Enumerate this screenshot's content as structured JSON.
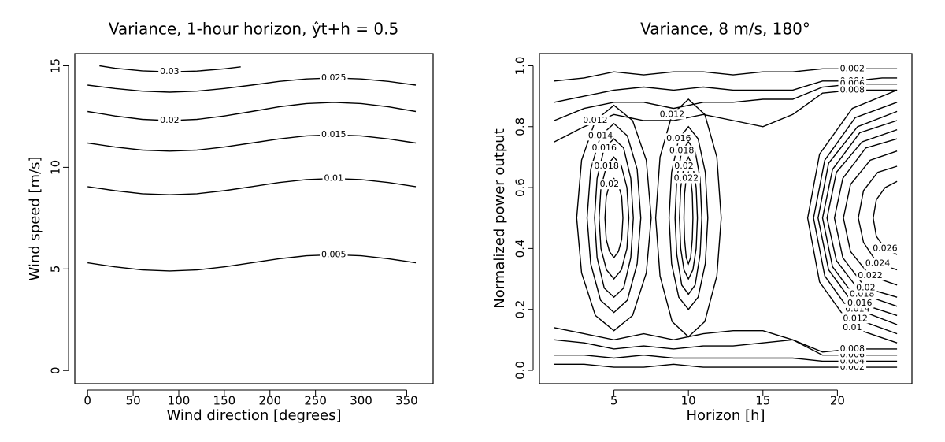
{
  "chart_data": [
    {
      "type": "contour",
      "title": "Variance, 1-hour horizon, ŷt+h = 0.5",
      "x_label": "Wind direction [degrees]",
      "y_label": "Wind speed [m/s]",
      "xlim": [
        -14,
        379
      ],
      "ylim": [
        -0.65,
        15.6
      ],
      "xticks": [
        0,
        50,
        100,
        150,
        200,
        250,
        300,
        350
      ],
      "yticks": [
        0,
        5,
        10,
        15
      ],
      "contours": [
        {
          "level": 0.005,
          "x": [
            0,
            30,
            60,
            90,
            120,
            150,
            180,
            210,
            240,
            270,
            300,
            330,
            360
          ],
          "y": [
            5.3,
            5.1,
            4.95,
            4.9,
            4.95,
            5.1,
            5.3,
            5.5,
            5.65,
            5.7,
            5.65,
            5.5,
            5.3
          ]
        },
        {
          "level": 0.01,
          "x": [
            0,
            30,
            60,
            90,
            120,
            150,
            180,
            210,
            240,
            270,
            300,
            330,
            360
          ],
          "y": [
            9.05,
            8.85,
            8.7,
            8.65,
            8.7,
            8.85,
            9.05,
            9.25,
            9.4,
            9.45,
            9.4,
            9.25,
            9.05
          ]
        },
        {
          "level": 0.015,
          "x": [
            0,
            30,
            60,
            90,
            120,
            150,
            180,
            210,
            240,
            270,
            300,
            330,
            360
          ],
          "y": [
            11.2,
            11.0,
            10.85,
            10.8,
            10.85,
            11.0,
            11.2,
            11.4,
            11.55,
            11.6,
            11.55,
            11.4,
            11.2
          ]
        },
        {
          "level": 0.02,
          "x": [
            0,
            30,
            60,
            90,
            120,
            150,
            180,
            210,
            240,
            270,
            300,
            330,
            360
          ],
          "y": [
            12.75,
            12.53,
            12.36,
            12.3,
            12.36,
            12.53,
            12.75,
            12.98,
            13.14,
            13.2,
            13.14,
            12.98,
            12.75
          ]
        },
        {
          "level": 0.025,
          "x": [
            0,
            30,
            60,
            90,
            120,
            150,
            180,
            210,
            240,
            270,
            300,
            330,
            360
          ],
          "y": [
            14.05,
            13.88,
            13.75,
            13.7,
            13.75,
            13.88,
            14.05,
            14.23,
            14.35,
            14.4,
            14.35,
            14.23,
            14.05
          ]
        },
        {
          "level": 0.03,
          "x": [
            13,
            30,
            60,
            90,
            120,
            150,
            168
          ],
          "y": [
            15.0,
            14.88,
            14.75,
            14.7,
            14.74,
            14.85,
            14.95
          ]
        }
      ]
    },
    {
      "type": "contour",
      "title": "Variance, 8 m/s, 180°",
      "x_label": "Horizon [h]",
      "y_label": "Normalized power output",
      "xlim": [
        0,
        25
      ],
      "ylim": [
        -0.044,
        1.04
      ],
      "xticks": [
        5,
        10,
        15,
        20
      ],
      "yticks": [
        {
          "value": 0,
          "label": "0.0"
        },
        0.2,
        0.4,
        0.6,
        0.8,
        {
          "value": 1,
          "label": "1.0"
        }
      ],
      "contours": [
        {
          "level": 0.002,
          "x": [
            1,
            3,
            5,
            7,
            9,
            11,
            13,
            15,
            17,
            19,
            21,
            23,
            24
          ],
          "y": [
            0.95,
            0.96,
            0.98,
            0.97,
            0.98,
            0.98,
            0.97,
            0.98,
            0.98,
            0.99,
            0.99,
            0.99,
            0.99
          ]
        },
        {
          "level": 0.002,
          "x": [
            1,
            3,
            5,
            7,
            9,
            11,
            13,
            15,
            17,
            19,
            21,
            23,
            24
          ],
          "y": [
            0.02,
            0.02,
            0.01,
            0.01,
            0.02,
            0.01,
            0.01,
            0.01,
            0.01,
            0.01,
            0.01,
            0.01,
            0.01
          ]
        },
        {
          "level": 0.004,
          "x": [
            1,
            3,
            5,
            7,
            9,
            11,
            13,
            15,
            17,
            19,
            21,
            23,
            24
          ],
          "y": [
            0.88,
            0.9,
            0.92,
            0.93,
            0.92,
            0.93,
            0.92,
            0.92,
            0.92,
            0.95,
            0.95,
            0.96,
            0.96
          ]
        },
        {
          "level": 0.004,
          "x": [
            1,
            3,
            5,
            7,
            9,
            11,
            13,
            15,
            17,
            19,
            21,
            23,
            24
          ],
          "y": [
            0.05,
            0.05,
            0.04,
            0.05,
            0.04,
            0.04,
            0.04,
            0.04,
            0.04,
            0.03,
            0.03,
            0.03,
            0.03
          ]
        },
        {
          "level": 0.006,
          "x": [
            1,
            3,
            5,
            7,
            9,
            11,
            13,
            15,
            17,
            19,
            21,
            23,
            24
          ],
          "y": [
            0.82,
            0.86,
            0.88,
            0.88,
            0.86,
            0.88,
            0.88,
            0.89,
            0.89,
            0.93,
            0.94,
            0.94,
            0.94
          ]
        },
        {
          "level": 0.006,
          "x": [
            1,
            3,
            5,
            7,
            9,
            11,
            13,
            15,
            17,
            19,
            21,
            23,
            24
          ],
          "y": [
            0.1,
            0.09,
            0.07,
            0.08,
            0.07,
            0.08,
            0.08,
            0.09,
            0.1,
            0.05,
            0.05,
            0.05,
            0.05
          ]
        },
        {
          "level": 0.008,
          "x": [
            1,
            3,
            5,
            7,
            9,
            11,
            13,
            15,
            17,
            19,
            21,
            23,
            24
          ],
          "y": [
            0.75,
            0.8,
            0.84,
            0.82,
            0.82,
            0.84,
            0.82,
            0.8,
            0.84,
            0.91,
            0.92,
            0.92,
            0.92
          ]
        },
        {
          "level": 0.008,
          "x": [
            1,
            3,
            5,
            7,
            9,
            11,
            13,
            15,
            17,
            19,
            21,
            23,
            24
          ],
          "y": [
            0.14,
            0.12,
            0.1,
            0.12,
            0.1,
            0.12,
            0.13,
            0.13,
            0.1,
            0.06,
            0.07,
            0.07,
            0.07
          ]
        },
        {
          "level": 0.012,
          "closed": true,
          "x": [
            7.5,
            7.17,
            6.25,
            5,
            3.75,
            2.83,
            2.5,
            2.83,
            3.75,
            5,
            6.25,
            7.17
          ],
          "y": [
            0.5,
            0.69,
            0.82,
            0.87,
            0.82,
            0.69,
            0.5,
            0.32,
            0.18,
            0.13,
            0.18,
            0.32
          ]
        },
        {
          "level": 0.014,
          "closed": true,
          "x": [
            6.8,
            6.56,
            5.9,
            5,
            4.1,
            3.44,
            3.2,
            3.44,
            4.1,
            5,
            5.9,
            6.56
          ],
          "y": [
            0.5,
            0.66,
            0.77,
            0.81,
            0.77,
            0.66,
            0.5,
            0.35,
            0.23,
            0.19,
            0.23,
            0.35
          ]
        },
        {
          "level": 0.016,
          "closed": true,
          "x": [
            6.3,
            6.13,
            5.65,
            5,
            4.35,
            3.87,
            3.7,
            3.87,
            4.35,
            5,
            5.65,
            6.13
          ],
          "y": [
            0.5,
            0.63,
            0.73,
            0.76,
            0.73,
            0.63,
            0.5,
            0.37,
            0.27,
            0.24,
            0.27,
            0.37
          ]
        },
        {
          "level": 0.018,
          "closed": true,
          "x": [
            6,
            5.87,
            5.5,
            5,
            4.5,
            4.13,
            4,
            4.13,
            4.5,
            5,
            5.5,
            5.87
          ],
          "y": [
            0.5,
            0.6,
            0.67,
            0.7,
            0.67,
            0.6,
            0.5,
            0.4,
            0.33,
            0.3,
            0.33,
            0.4
          ]
        },
        {
          "level": 0.02,
          "closed": true,
          "x": [
            5.6,
            5.52,
            5.3,
            5,
            4.7,
            4.48,
            4.4,
            4.48,
            4.7,
            5,
            5.3,
            5.52
          ],
          "y": [
            0.5,
            0.57,
            0.61,
            0.63,
            0.61,
            0.57,
            0.5,
            0.43,
            0.39,
            0.37,
            0.39,
            0.43
          ]
        },
        {
          "level": 0.012,
          "closed": true,
          "x": [
            12.2,
            11.91,
            11.1,
            10,
            8.9,
            8.09,
            7.8,
            8.09,
            8.9,
            10,
            11.1,
            11.91
          ],
          "y": [
            0.5,
            0.7,
            0.84,
            0.89,
            0.84,
            0.7,
            0.5,
            0.31,
            0.16,
            0.11,
            0.16,
            0.31
          ]
        },
        {
          "level": 0.016,
          "closed": true,
          "x": [
            11.3,
            11.13,
            10.65,
            10,
            9.35,
            8.87,
            8.7,
            8.87,
            9.35,
            10,
            10.65,
            11.13
          ],
          "y": [
            0.5,
            0.65,
            0.76,
            0.8,
            0.76,
            0.65,
            0.5,
            0.35,
            0.24,
            0.2,
            0.24,
            0.35
          ]
        },
        {
          "level": 0.018,
          "closed": true,
          "x": [
            10.9,
            10.78,
            10.45,
            10,
            9.55,
            9.22,
            9.1,
            9.22,
            9.55,
            10,
            10.45,
            10.78
          ],
          "y": [
            0.5,
            0.63,
            0.72,
            0.75,
            0.72,
            0.63,
            0.5,
            0.38,
            0.28,
            0.25,
            0.28,
            0.38
          ]
        },
        {
          "level": 0.02,
          "closed": true,
          "x": [
            10.6,
            10.52,
            10.3,
            10,
            9.7,
            9.48,
            9.4,
            9.48,
            9.7,
            10,
            10.3,
            10.52
          ],
          "y": [
            0.5,
            0.6,
            0.67,
            0.7,
            0.67,
            0.6,
            0.5,
            0.4,
            0.33,
            0.3,
            0.33,
            0.4
          ]
        },
        {
          "level": 0.022,
          "closed": true,
          "x": [
            10.3,
            10.26,
            10.15,
            10,
            9.85,
            9.74,
            9.7,
            9.74,
            9.85,
            10,
            10.15,
            10.26
          ],
          "y": [
            0.5,
            0.58,
            0.63,
            0.65,
            0.63,
            0.58,
            0.5,
            0.43,
            0.37,
            0.35,
            0.37,
            0.43
          ]
        },
        {
          "level": 0.01,
          "x": [
            24,
            21,
            18.8,
            18,
            18.8,
            21,
            24
          ],
          "y": [
            0.92,
            0.86,
            0.71,
            0.5,
            0.29,
            0.14,
            0.09
          ]
        },
        {
          "level": 0.012,
          "x": [
            24,
            21.2,
            19.15,
            18.4,
            19.15,
            21.2,
            24
          ],
          "y": [
            0.88,
            0.83,
            0.69,
            0.5,
            0.31,
            0.17,
            0.12
          ]
        },
        {
          "level": 0.014,
          "x": [
            24,
            21.35,
            19.41,
            18.7,
            19.41,
            21.35,
            24
          ],
          "y": [
            0.85,
            0.8,
            0.68,
            0.5,
            0.33,
            0.2,
            0.15
          ]
        },
        {
          "level": 0.016,
          "x": [
            24,
            21.5,
            19.67,
            19,
            19.67,
            21.5,
            24
          ],
          "y": [
            0.82,
            0.78,
            0.66,
            0.5,
            0.34,
            0.22,
            0.18
          ]
        },
        {
          "level": 0.018,
          "x": [
            24,
            21.65,
            19.93,
            19.3,
            19.93,
            21.65,
            24
          ],
          "y": [
            0.79,
            0.75,
            0.65,
            0.5,
            0.36,
            0.25,
            0.21
          ]
        },
        {
          "level": 0.02,
          "x": [
            24,
            21.9,
            20.36,
            19.8,
            20.36,
            21.9,
            24
          ],
          "y": [
            0.76,
            0.73,
            0.63,
            0.5,
            0.37,
            0.27,
            0.24
          ]
        },
        {
          "level": 0.022,
          "x": [
            24,
            22.2,
            20.88,
            20.4,
            20.88,
            22.2,
            24
          ],
          "y": [
            0.72,
            0.69,
            0.61,
            0.5,
            0.39,
            0.31,
            0.28
          ]
        },
        {
          "level": 0.024,
          "x": [
            24,
            22.7,
            21.75,
            21.4,
            21.75,
            22.7,
            24
          ],
          "y": [
            0.67,
            0.65,
            0.59,
            0.5,
            0.42,
            0.35,
            0.33
          ]
        },
        {
          "level": 0.026,
          "x": [
            24,
            23.2,
            22.61,
            22.4,
            22.61,
            23.2,
            24
          ],
          "y": [
            0.62,
            0.6,
            0.56,
            0.5,
            0.44,
            0.4,
            0.38
          ]
        }
      ]
    }
  ]
}
